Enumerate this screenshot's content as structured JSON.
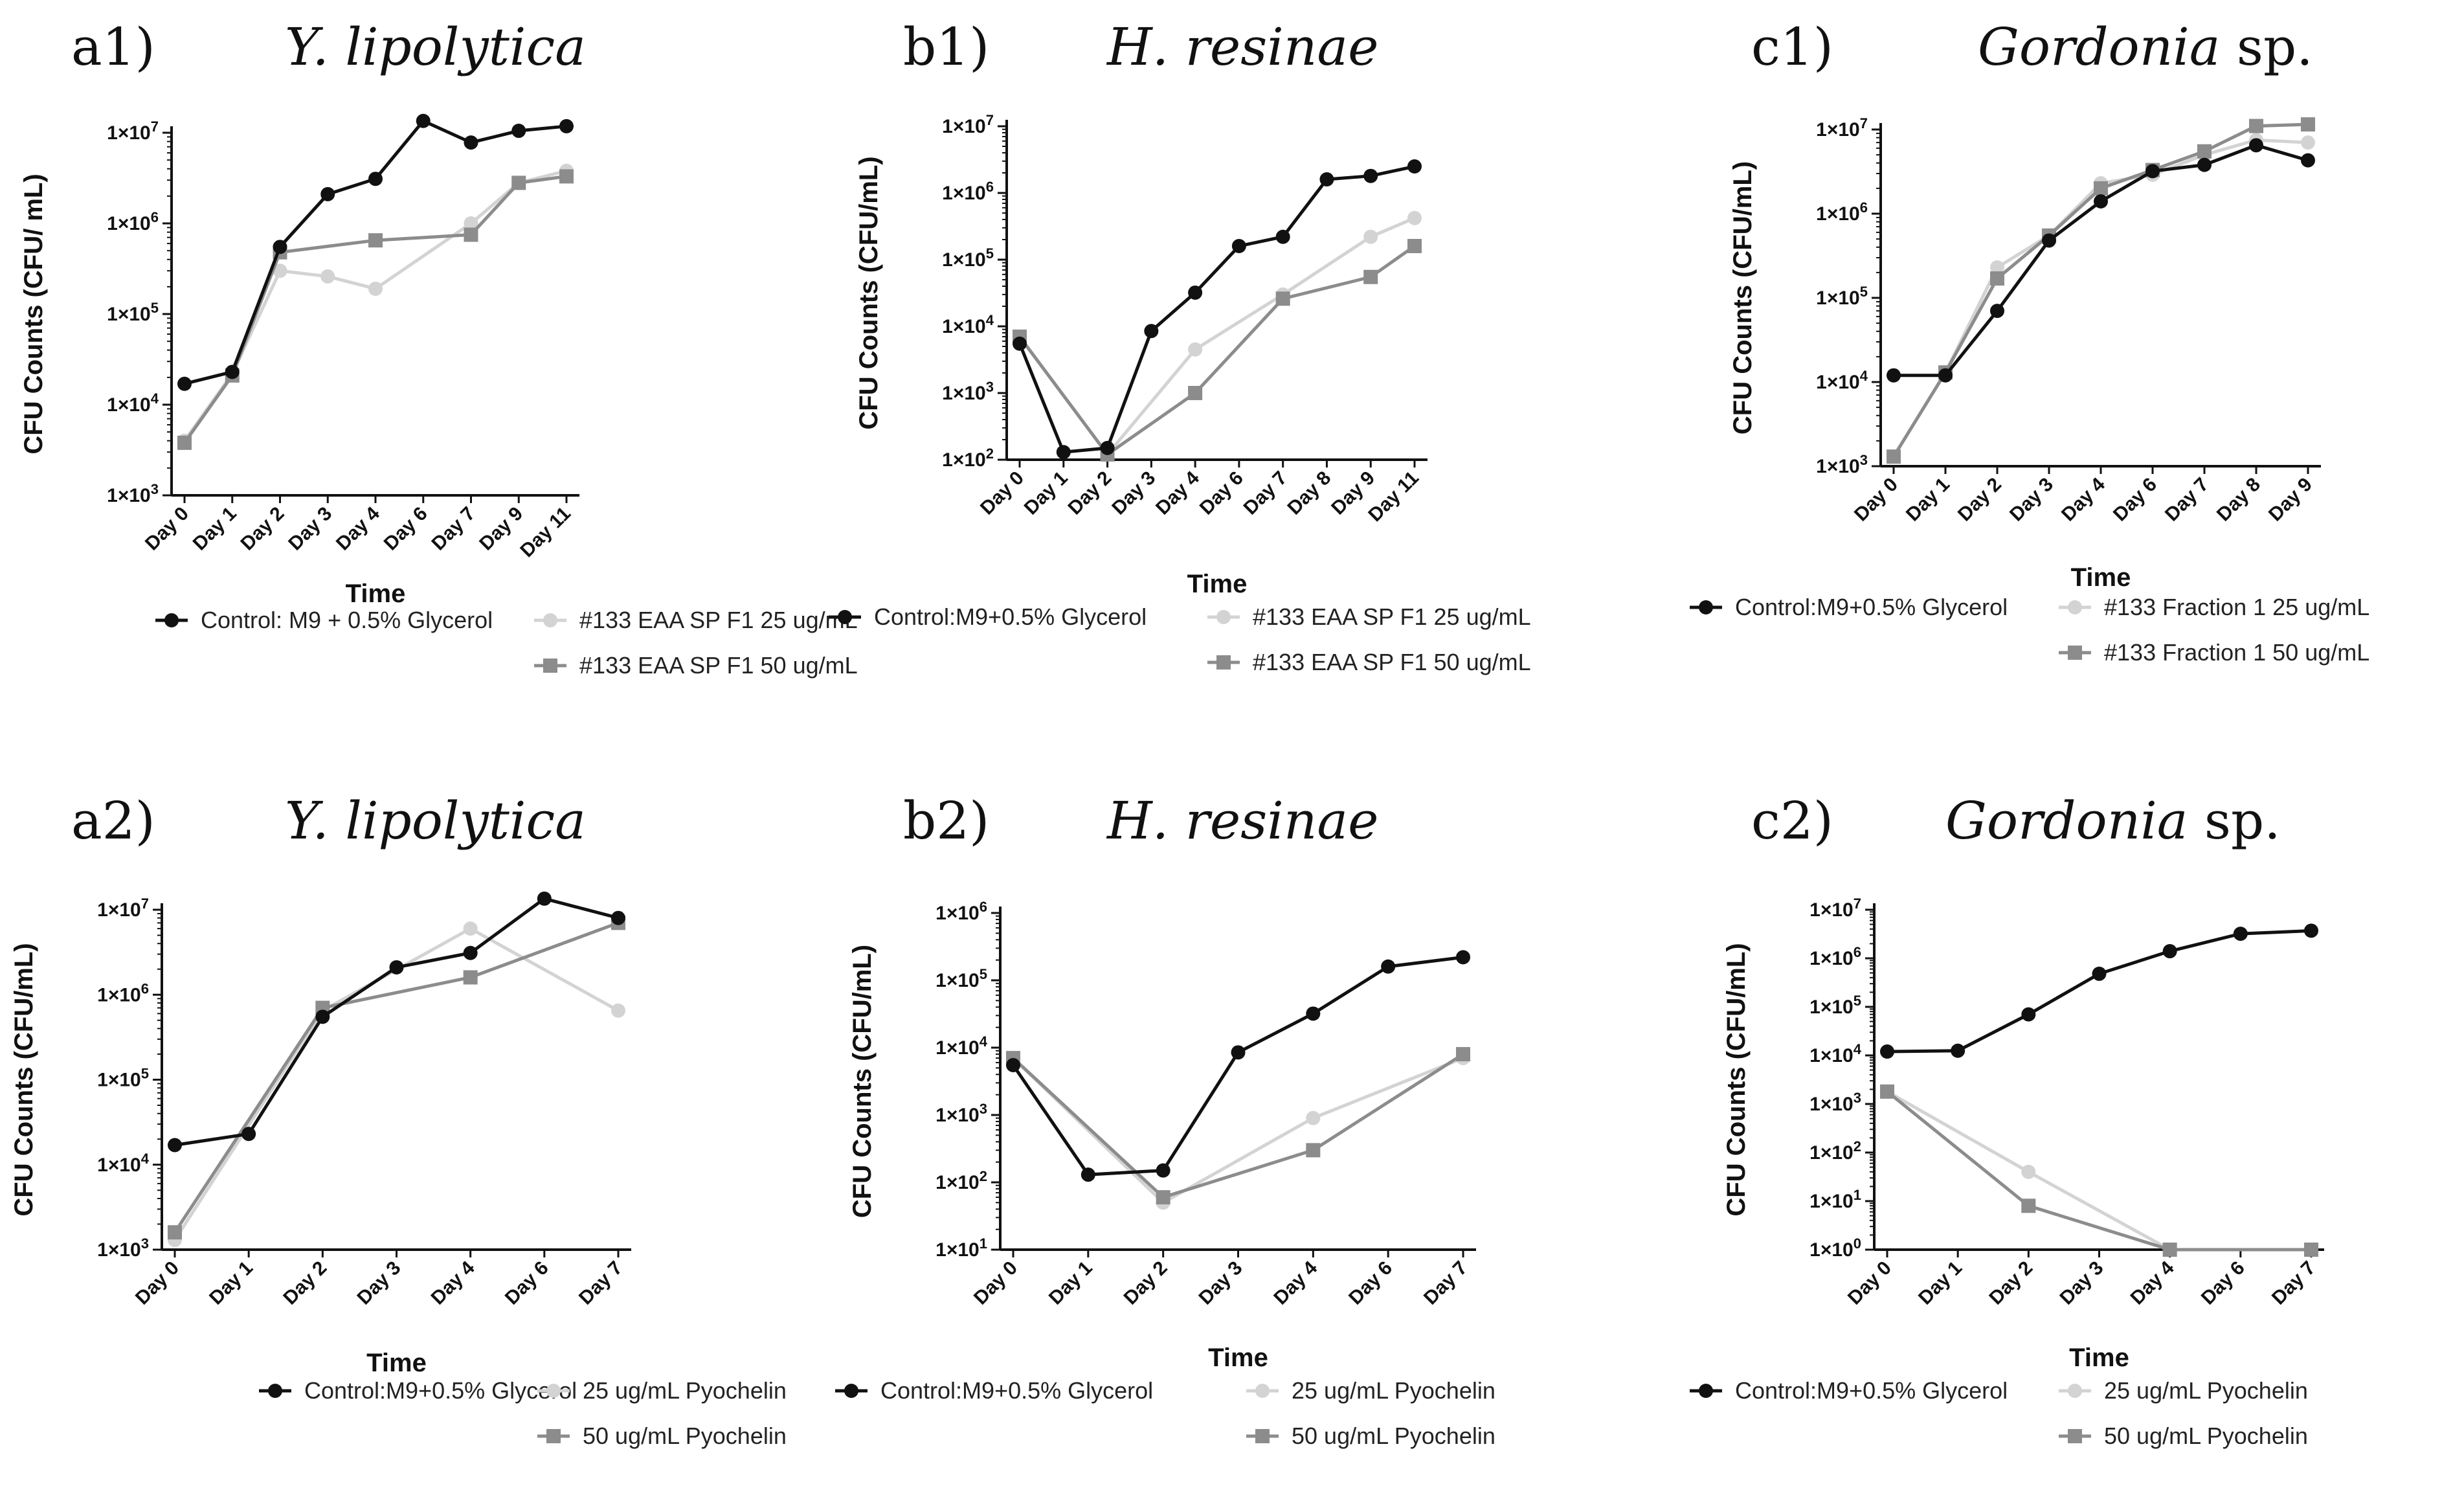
{
  "figure": {
    "panels": [
      {
        "id": "a1",
        "letter": "a1)",
        "title_italic": "Y. lipolytica",
        "title_rest": ""
      },
      {
        "id": "b1",
        "letter": "b1)",
        "title_italic": "H. resinae",
        "title_rest": ""
      },
      {
        "id": "c1",
        "letter": "c1)",
        "title_italic": "Gordonia",
        "title_rest": " sp."
      },
      {
        "id": "a2",
        "letter": "a2)",
        "title_italic": "Y. lipolytica",
        "title_rest": ""
      },
      {
        "id": "b2",
        "letter": "b2)",
        "title_italic": "H. resinae",
        "title_rest": ""
      },
      {
        "id": "c2",
        "letter": "c2)",
        "title_italic": "Gordonia",
        "title_rest": " sp."
      }
    ],
    "colors": {
      "control": "#111111",
      "low": "#d3d3d3",
      "high": "#8c8c8c"
    }
  },
  "chart_data": [
    {
      "id": "a1",
      "type": "line",
      "scale": "log",
      "title": "Y. lipolytica",
      "xlabel": "Time",
      "ylabel": "CFU Counts (CFU/ mL)",
      "ylim_exp": [
        3,
        7
      ],
      "categories": [
        "Day 0",
        "Day 1",
        "Day 2",
        "Day 3",
        "Day 4",
        "Day 6",
        "Day 7",
        "Day 9",
        "Day 11"
      ],
      "series": [
        {
          "name": "Control:  M9 + 0.5% Glycerol",
          "marker": "circle",
          "color": "#111111",
          "legend_pos": "left",
          "values": [
            17000,
            23000,
            550000,
            2100000,
            3100000,
            13500000,
            7800000,
            10500000,
            11800000
          ]
        },
        {
          "name": "#133 EAA SP F1 25 ug/mL",
          "marker": "circle",
          "color": "#d3d3d3",
          "legend_pos": "right1",
          "values": [
            4000,
            22000,
            300000,
            260000,
            190000,
            null,
            1000000,
            2800000,
            3800000
          ]
        },
        {
          "name": "#133 EAA SP F1 50 ug/mL",
          "marker": "square",
          "color": "#8c8c8c",
          "legend_pos": "right2",
          "values": [
            3800,
            21000,
            480000,
            null,
            650000,
            null,
            750000,
            2800000,
            3300000
          ]
        }
      ]
    },
    {
      "id": "b1",
      "type": "line",
      "scale": "log",
      "title": "H. resinae",
      "xlabel": "Time",
      "ylabel": "CFU Counts (CFU/mL)",
      "ylim_exp": [
        2,
        7
      ],
      "categories": [
        "Day 0",
        "Day 1",
        "Day 2",
        "Day 3",
        "Day 4",
        "Day 6",
        "Day 7",
        "Day 8",
        "Day 9",
        "Day 11"
      ],
      "series": [
        {
          "name": "Control:M9+0.5% Glycerol",
          "marker": "circle",
          "color": "#111111",
          "legend_pos": "left",
          "values": [
            5500,
            130,
            150,
            8500,
            32000,
            160000,
            220000,
            1600000,
            1800000,
            2500000
          ]
        },
        {
          "name": "#133 EAA SP F1 25 ug/mL",
          "marker": "circle",
          "color": "#d3d3d3",
          "legend_pos": "right1",
          "values": [
            7000,
            null,
            120,
            null,
            4500,
            null,
            30000,
            null,
            220000,
            420000
          ]
        },
        {
          "name": "#133 EAA SP F1 50 ug/mL",
          "marker": "square",
          "color": "#8c8c8c",
          "legend_pos": "right2",
          "values": [
            7000,
            null,
            120,
            null,
            1000,
            null,
            26000,
            null,
            55000,
            160000
          ]
        }
      ]
    },
    {
      "id": "c1",
      "type": "line",
      "scale": "log",
      "title": "Gordonia sp.",
      "xlabel": "Time",
      "ylabel": "CFU Counts (CFU/mL)",
      "ylim_exp": [
        3,
        7
      ],
      "categories": [
        "Day 0",
        "Day 1",
        "Day 2",
        "Day 3",
        "Day 4",
        "Day 6",
        "Day 7",
        "Day 8",
        "Day 9"
      ],
      "series": [
        {
          "name": "Control:M9+0.5% Glycerol",
          "marker": "circle",
          "color": "#111111",
          "legend_pos": "left",
          "values": [
            12000,
            12000,
            70000,
            480000,
            1400000,
            3200000,
            3800000,
            6500000,
            4300000
          ]
        },
        {
          "name": "#133 Fraction 1  25 ug/mL",
          "marker": "circle",
          "color": "#d3d3d3",
          "legend_pos": "right1",
          "values": [
            1300,
            13000,
            230000,
            550000,
            2300000,
            2900000,
            5000000,
            7500000,
            7000000
          ]
        },
        {
          "name": "#133 Fraction 1  50 ug/mL",
          "marker": "square",
          "color": "#8c8c8c",
          "legend_pos": "right2",
          "values": [
            1300,
            13000,
            170000,
            550000,
            2000000,
            3300000,
            5500000,
            11000000,
            11500000
          ]
        }
      ]
    },
    {
      "id": "a2",
      "type": "line",
      "scale": "log",
      "title": "Y. lipolytica",
      "xlabel": "Time",
      "ylabel": "CFU Counts (CFU/mL)",
      "ylim_exp": [
        3,
        7
      ],
      "categories": [
        "Day 0",
        "Day 1",
        "Day 2",
        "Day 3",
        "Day 4",
        "Day 6",
        "Day 7"
      ],
      "series": [
        {
          "name": "Control:M9+0.5% Glycerol",
          "marker": "circle",
          "color": "#111111",
          "legend_pos": "left",
          "values": [
            17000,
            23000,
            550000,
            2100000,
            3100000,
            13500000,
            8000000
          ]
        },
        {
          "name": "25 ug/mL Pyochelin",
          "marker": "circle",
          "color": "#d3d3d3",
          "legend_pos": "right1",
          "values": [
            1300,
            null,
            650000,
            null,
            6000000,
            null,
            650000
          ]
        },
        {
          "name": "50 ug/mL Pyochelin",
          "marker": "square",
          "color": "#8c8c8c",
          "legend_pos": "right2",
          "values": [
            1600,
            null,
            700000,
            null,
            1600000,
            null,
            7000000
          ]
        }
      ]
    },
    {
      "id": "b2",
      "type": "line",
      "scale": "log",
      "title": "H. resinae",
      "xlabel": "Time",
      "ylabel": "CFU Counts (CFU/mL)",
      "ylim_exp": [
        1,
        6
      ],
      "categories": [
        "Day 0",
        "Day 1",
        "Day 2",
        "Day 3",
        "Day 4",
        "Day 6",
        "Day 7"
      ],
      "series": [
        {
          "name": "Control:M9+0.5% Glycerol",
          "marker": "circle",
          "color": "#111111",
          "legend_pos": "left",
          "values": [
            5500,
            130,
            150,
            8500,
            32000,
            160000,
            220000
          ]
        },
        {
          "name": "25 ug/mL Pyochelin",
          "marker": "circle",
          "color": "#d3d3d3",
          "legend_pos": "right1",
          "values": [
            7000,
            null,
            50,
            null,
            900,
            null,
            7000
          ]
        },
        {
          "name": "50 ug/mL Pyochelin",
          "marker": "square",
          "color": "#8c8c8c",
          "legend_pos": "right2",
          "values": [
            7000,
            null,
            60,
            null,
            300,
            null,
            8000
          ]
        }
      ]
    },
    {
      "id": "c2",
      "type": "line",
      "scale": "log",
      "title": "Gordonia sp.",
      "xlabel": "Time",
      "ylabel": "CFU Counts (CFU/mL)",
      "ylim_exp": [
        0,
        7
      ],
      "categories": [
        "Day 0",
        "Day 1",
        "Day 2",
        "Day 3",
        "Day 4",
        "Day 6",
        "Day 7"
      ],
      "series": [
        {
          "name": "Control:M9+0.5% Glycerol",
          "marker": "circle",
          "color": "#111111",
          "legend_pos": "left",
          "values": [
            12000,
            12500,
            70000,
            480000,
            1400000,
            3200000,
            3700000
          ]
        },
        {
          "name": "25 ug/mL Pyochelin",
          "marker": "circle",
          "color": "#d3d3d3",
          "legend_pos": "right1",
          "values": [
            1800,
            null,
            40,
            null,
            1,
            null,
            1
          ]
        },
        {
          "name": "50 ug/mL Pyochelin",
          "marker": "square",
          "color": "#8c8c8c",
          "legend_pos": "right2",
          "values": [
            1800,
            null,
            8,
            null,
            1,
            null,
            1
          ]
        }
      ]
    }
  ]
}
